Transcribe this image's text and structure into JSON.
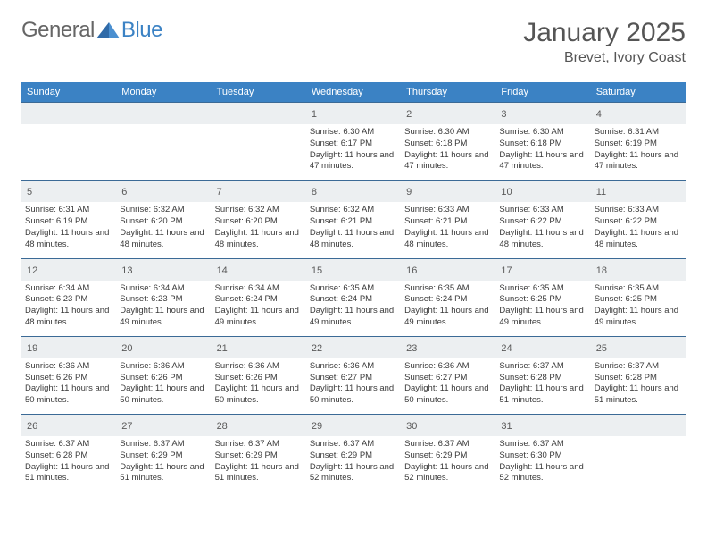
{
  "brand": {
    "part1": "General",
    "part2": "Blue"
  },
  "title": "January 2025",
  "location": "Brevet, Ivory Coast",
  "colors": {
    "header_bg": "#3b82c4",
    "header_text": "#ffffff",
    "daynum_bg": "#eceff1",
    "daynum_border": "#3b6a96",
    "body_text": "#3a3a3a",
    "title_text": "#555555"
  },
  "dayNames": [
    "Sunday",
    "Monday",
    "Tuesday",
    "Wednesday",
    "Thursday",
    "Friday",
    "Saturday"
  ],
  "weeks": [
    [
      {
        "empty": true
      },
      {
        "empty": true
      },
      {
        "empty": true
      },
      {
        "n": "1",
        "sr": "6:30 AM",
        "ss": "6:17 PM",
        "dl": "11 hours and 47 minutes."
      },
      {
        "n": "2",
        "sr": "6:30 AM",
        "ss": "6:18 PM",
        "dl": "11 hours and 47 minutes."
      },
      {
        "n": "3",
        "sr": "6:30 AM",
        "ss": "6:18 PM",
        "dl": "11 hours and 47 minutes."
      },
      {
        "n": "4",
        "sr": "6:31 AM",
        "ss": "6:19 PM",
        "dl": "11 hours and 47 minutes."
      }
    ],
    [
      {
        "n": "5",
        "sr": "6:31 AM",
        "ss": "6:19 PM",
        "dl": "11 hours and 48 minutes."
      },
      {
        "n": "6",
        "sr": "6:32 AM",
        "ss": "6:20 PM",
        "dl": "11 hours and 48 minutes."
      },
      {
        "n": "7",
        "sr": "6:32 AM",
        "ss": "6:20 PM",
        "dl": "11 hours and 48 minutes."
      },
      {
        "n": "8",
        "sr": "6:32 AM",
        "ss": "6:21 PM",
        "dl": "11 hours and 48 minutes."
      },
      {
        "n": "9",
        "sr": "6:33 AM",
        "ss": "6:21 PM",
        "dl": "11 hours and 48 minutes."
      },
      {
        "n": "10",
        "sr": "6:33 AM",
        "ss": "6:22 PM",
        "dl": "11 hours and 48 minutes."
      },
      {
        "n": "11",
        "sr": "6:33 AM",
        "ss": "6:22 PM",
        "dl": "11 hours and 48 minutes."
      }
    ],
    [
      {
        "n": "12",
        "sr": "6:34 AM",
        "ss": "6:23 PM",
        "dl": "11 hours and 48 minutes."
      },
      {
        "n": "13",
        "sr": "6:34 AM",
        "ss": "6:23 PM",
        "dl": "11 hours and 49 minutes."
      },
      {
        "n": "14",
        "sr": "6:34 AM",
        "ss": "6:24 PM",
        "dl": "11 hours and 49 minutes."
      },
      {
        "n": "15",
        "sr": "6:35 AM",
        "ss": "6:24 PM",
        "dl": "11 hours and 49 minutes."
      },
      {
        "n": "16",
        "sr": "6:35 AM",
        "ss": "6:24 PM",
        "dl": "11 hours and 49 minutes."
      },
      {
        "n": "17",
        "sr": "6:35 AM",
        "ss": "6:25 PM",
        "dl": "11 hours and 49 minutes."
      },
      {
        "n": "18",
        "sr": "6:35 AM",
        "ss": "6:25 PM",
        "dl": "11 hours and 49 minutes."
      }
    ],
    [
      {
        "n": "19",
        "sr": "6:36 AM",
        "ss": "6:26 PM",
        "dl": "11 hours and 50 minutes."
      },
      {
        "n": "20",
        "sr": "6:36 AM",
        "ss": "6:26 PM",
        "dl": "11 hours and 50 minutes."
      },
      {
        "n": "21",
        "sr": "6:36 AM",
        "ss": "6:26 PM",
        "dl": "11 hours and 50 minutes."
      },
      {
        "n": "22",
        "sr": "6:36 AM",
        "ss": "6:27 PM",
        "dl": "11 hours and 50 minutes."
      },
      {
        "n": "23",
        "sr": "6:36 AM",
        "ss": "6:27 PM",
        "dl": "11 hours and 50 minutes."
      },
      {
        "n": "24",
        "sr": "6:37 AM",
        "ss": "6:28 PM",
        "dl": "11 hours and 51 minutes."
      },
      {
        "n": "25",
        "sr": "6:37 AM",
        "ss": "6:28 PM",
        "dl": "11 hours and 51 minutes."
      }
    ],
    [
      {
        "n": "26",
        "sr": "6:37 AM",
        "ss": "6:28 PM",
        "dl": "11 hours and 51 minutes."
      },
      {
        "n": "27",
        "sr": "6:37 AM",
        "ss": "6:29 PM",
        "dl": "11 hours and 51 minutes."
      },
      {
        "n": "28",
        "sr": "6:37 AM",
        "ss": "6:29 PM",
        "dl": "11 hours and 51 minutes."
      },
      {
        "n": "29",
        "sr": "6:37 AM",
        "ss": "6:29 PM",
        "dl": "11 hours and 52 minutes."
      },
      {
        "n": "30",
        "sr": "6:37 AM",
        "ss": "6:29 PM",
        "dl": "11 hours and 52 minutes."
      },
      {
        "n": "31",
        "sr": "6:37 AM",
        "ss": "6:30 PM",
        "dl": "11 hours and 52 minutes."
      },
      {
        "empty": true
      }
    ]
  ],
  "labels": {
    "sunrise": "Sunrise:",
    "sunset": "Sunset:",
    "daylight": "Daylight:"
  }
}
